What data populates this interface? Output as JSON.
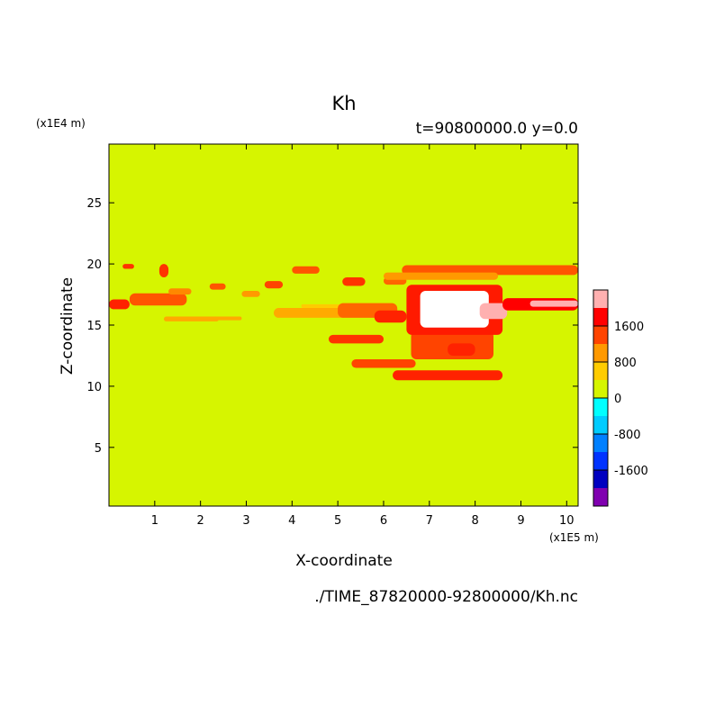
{
  "chart_data": {
    "type": "heatmap",
    "title": "Kh",
    "subtitle": "t=90800000.0 y=0.0",
    "xlabel": "X-coordinate",
    "ylabel": "Z-coordinate",
    "x_unit": "(x1E5 m)",
    "y_unit": "(x1E4 m)",
    "xlim": [
      0,
      10.25
    ],
    "ylim": [
      0.2,
      29.8
    ],
    "x_ticks": [
      1,
      2,
      3,
      4,
      5,
      6,
      7,
      8,
      9,
      10
    ],
    "y_ticks": [
      5,
      10,
      15,
      20,
      25
    ],
    "background_value": 0,
    "background_color": "#d6f500",
    "colorbar": {
      "tick_labels": [
        "1600",
        "800",
        "0",
        "-800",
        "-1600"
      ],
      "tick_values": [
        1600,
        800,
        0,
        -800,
        -1600
      ],
      "levels": [
        {
          "min": 2000,
          "max": 2400,
          "color": "#ffb0b0"
        },
        {
          "min": 1600,
          "max": 2000,
          "color": "#ff0000"
        },
        {
          "min": 1200,
          "max": 1600,
          "color": "#ff4400"
        },
        {
          "min": 800,
          "max": 1200,
          "color": "#ff9900"
        },
        {
          "min": 400,
          "max": 800,
          "color": "#ffcc00"
        },
        {
          "min": 0,
          "max": 400,
          "color": "#d6f500"
        },
        {
          "min": -400,
          "max": 0,
          "color": "#00ffff"
        },
        {
          "min": -800,
          "max": -400,
          "color": "#00ccff"
        },
        {
          "min": -1200,
          "max": -800,
          "color": "#0080ff"
        },
        {
          "min": -1600,
          "max": -1200,
          "color": "#0033ff"
        },
        {
          "min": -2000,
          "max": -1600,
          "color": "#0000c0"
        },
        {
          "min": -2400,
          "max": -2000,
          "color": "#8000b0"
        }
      ]
    },
    "features": [
      {
        "x0": 0.0,
        "x1": 0.45,
        "z0": 16.3,
        "z1": 17.1,
        "color": "#ff2200"
      },
      {
        "x0": 0.45,
        "x1": 1.7,
        "z0": 16.6,
        "z1": 17.6,
        "color": "#ff5500"
      },
      {
        "x0": 1.3,
        "x1": 1.8,
        "z0": 17.5,
        "z1": 18.0,
        "color": "#ff8800"
      },
      {
        "x0": 1.2,
        "x1": 2.4,
        "z0": 15.3,
        "z1": 15.7,
        "color": "#ffaa00"
      },
      {
        "x0": 2.3,
        "x1": 2.9,
        "z0": 15.4,
        "z1": 15.7,
        "color": "#ffaa00"
      },
      {
        "x0": 2.2,
        "x1": 2.55,
        "z0": 17.9,
        "z1": 18.4,
        "color": "#ff5500"
      },
      {
        "x0": 2.9,
        "x1": 3.3,
        "z0": 17.3,
        "z1": 17.8,
        "color": "#ff9900"
      },
      {
        "x0": 3.4,
        "x1": 3.8,
        "z0": 18.0,
        "z1": 18.6,
        "color": "#ff4400"
      },
      {
        "x0": 3.6,
        "x1": 5.2,
        "z0": 15.6,
        "z1": 16.4,
        "color": "#ffaa00"
      },
      {
        "x0": 4.2,
        "x1": 5.4,
        "z0": 16.4,
        "z1": 16.7,
        "color": "#ffcc00"
      },
      {
        "x0": 5.0,
        "x1": 6.3,
        "z0": 15.6,
        "z1": 16.8,
        "color": "#ff6600"
      },
      {
        "x0": 5.8,
        "x1": 6.5,
        "z0": 15.2,
        "z1": 16.2,
        "color": "#ff2200"
      },
      {
        "x0": 4.0,
        "x1": 4.6,
        "z0": 19.2,
        "z1": 19.8,
        "color": "#ff5500"
      },
      {
        "x0": 5.1,
        "x1": 5.6,
        "z0": 18.2,
        "z1": 18.9,
        "color": "#ff3300"
      },
      {
        "x0": 6.0,
        "x1": 6.5,
        "z0": 18.3,
        "z1": 18.9,
        "color": "#ff6600"
      },
      {
        "x0": 4.8,
        "x1": 6.0,
        "z0": 13.5,
        "z1": 14.2,
        "color": "#ff3300"
      },
      {
        "x0": 5.3,
        "x1": 6.7,
        "z0": 11.5,
        "z1": 12.2,
        "color": "#ff4400"
      },
      {
        "x0": 6.2,
        "x1": 8.6,
        "z0": 10.5,
        "z1": 11.3,
        "color": "#ff2200"
      },
      {
        "x0": 6.6,
        "x1": 8.4,
        "z0": 12.2,
        "z1": 14.5,
        "color": "#ff4400"
      },
      {
        "x0": 6.5,
        "x1": 8.6,
        "z0": 14.2,
        "z1": 18.3,
        "color": "#ff1a00"
      },
      {
        "x0": 6.8,
        "x1": 8.3,
        "z0": 14.8,
        "z1": 17.8,
        "color": "#ffffff"
      },
      {
        "x0": 8.1,
        "x1": 8.7,
        "z0": 15.5,
        "z1": 16.8,
        "color": "#ffb0b0"
      },
      {
        "x0": 8.6,
        "x1": 10.25,
        "z0": 16.2,
        "z1": 17.2,
        "color": "#ff0000"
      },
      {
        "x0": 9.2,
        "x1": 10.25,
        "z0": 16.5,
        "z1": 17.0,
        "color": "#ffb0b0"
      },
      {
        "x0": 6.4,
        "x1": 10.25,
        "z0": 19.1,
        "z1": 19.9,
        "color": "#ff5500"
      },
      {
        "x0": 6.0,
        "x1": 8.5,
        "z0": 18.7,
        "z1": 19.3,
        "color": "#ff9900"
      },
      {
        "x0": 0.3,
        "x1": 0.55,
        "z0": 19.6,
        "z1": 20.0,
        "color": "#ff3300"
      },
      {
        "x0": 1.1,
        "x1": 1.3,
        "z0": 18.9,
        "z1": 20.0,
        "color": "#ff3300"
      },
      {
        "x0": 7.4,
        "x1": 8.0,
        "z0": 12.5,
        "z1": 13.5,
        "color": "#ff2200"
      }
    ]
  },
  "footer": {
    "file_path": "./TIME_87820000-92800000/Kh.nc"
  }
}
